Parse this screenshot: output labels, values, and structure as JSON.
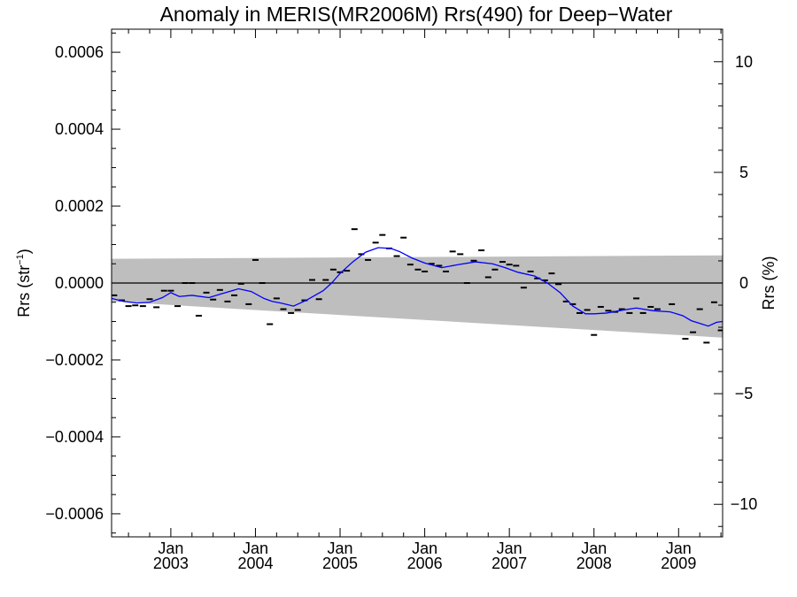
{
  "chart_data": {
    "type": "scatter",
    "title": "Anomaly in MERIS(MR2006M) Rrs(490) for Deep−Water",
    "ylabel_main": "Rrs (str",
    "ylabel_sup": "−1",
    "ylabel_close": ")",
    "y2label": "Rrs (%)",
    "xlim": [
      2002.3,
      2009.52
    ],
    "ylim": [
      -0.00066,
      0.00066
    ],
    "y2lim": [
      -11.47,
      11.47
    ],
    "grid": false,
    "x_ticks": [
      {
        "value": 2003.0,
        "line1": "Jan",
        "line2": "2003"
      },
      {
        "value": 2004.0,
        "line1": "Jan",
        "line2": "2004"
      },
      {
        "value": 2005.0,
        "line1": "Jan",
        "line2": "2005"
      },
      {
        "value": 2006.0,
        "line1": "Jan",
        "line2": "2006"
      },
      {
        "value": 2007.0,
        "line1": "Jan",
        "line2": "2007"
      },
      {
        "value": 2008.0,
        "line1": "Jan",
        "line2": "2008"
      },
      {
        "value": 2009.0,
        "line1": "Jan",
        "line2": "2009"
      }
    ],
    "y_ticks": [
      {
        "value": 0.0006,
        "label": "0.0006"
      },
      {
        "value": 0.0004,
        "label": "0.0004"
      },
      {
        "value": 0.0002,
        "label": "0.0002"
      },
      {
        "value": 0.0,
        "label": "0.0000"
      },
      {
        "value": -0.0002,
        "label": "−0.0002"
      },
      {
        "value": -0.0004,
        "label": "−0.0004"
      },
      {
        "value": -0.0006,
        "label": "−0.0006"
      }
    ],
    "y2_ticks": [
      {
        "value": 10,
        "label": "10"
      },
      {
        "value": 5,
        "label": "5"
      },
      {
        "value": 0,
        "label": "0"
      },
      {
        "value": -5,
        "label": "−5"
      },
      {
        "value": -10,
        "label": "−10"
      }
    ],
    "band": {
      "x": [
        2002.3,
        2009.52
      ],
      "upper": [
        6.3e-05,
        7.2e-05
      ],
      "lower": [
        -4.8e-05,
        -0.000142
      ],
      "color": "#bebebe"
    },
    "zero_line": 0,
    "monthly_anomalies": {
      "marker": "dash",
      "color": "#000000",
      "x": [
        2002.33,
        2002.42,
        2002.5,
        2002.58,
        2002.67,
        2002.75,
        2002.83,
        2002.92,
        2003.0,
        2003.08,
        2003.17,
        2003.25,
        2003.33,
        2003.42,
        2003.5,
        2003.58,
        2003.67,
        2003.75,
        2003.83,
        2003.92,
        2004.0,
        2004.08,
        2004.17,
        2004.25,
        2004.33,
        2004.42,
        2004.5,
        2004.58,
        2004.67,
        2004.75,
        2004.83,
        2004.92,
        2005.0,
        2005.08,
        2005.17,
        2005.25,
        2005.33,
        2005.42,
        2005.5,
        2005.58,
        2005.67,
        2005.75,
        2005.83,
        2005.92,
        2006.0,
        2006.08,
        2006.17,
        2006.25,
        2006.33,
        2006.42,
        2006.5,
        2006.58,
        2006.67,
        2006.75,
        2006.83,
        2006.92,
        2007.0,
        2007.08,
        2007.17,
        2007.25,
        2007.33,
        2007.42,
        2007.5,
        2007.58,
        2007.67,
        2007.75,
        2007.83,
        2007.92,
        2008.0,
        2008.08,
        2008.17,
        2008.25,
        2008.33,
        2008.42,
        2008.5,
        2008.58,
        2008.67,
        2008.75,
        2008.92,
        2009.08,
        2009.17,
        2009.25,
        2009.33,
        2009.42,
        2009.5
      ],
      "values": [
        -3.2e-05,
        -4.5e-05,
        -6e-05,
        -5.8e-05,
        -6e-05,
        -4.2e-05,
        -6.3e-05,
        -2e-05,
        -2e-05,
        -6e-05,
        0.0,
        0.0,
        -8.5e-05,
        -2.5e-05,
        -4.3e-05,
        -1.8e-05,
        -4.8e-05,
        -3.2e-05,
        -2e-06,
        -5.5e-05,
        6e-05,
        0.0,
        -0.000107,
        -4e-05,
        -6.8e-05,
        -7.8e-05,
        -7e-05,
        -4.5e-05,
        8e-06,
        -4.2e-05,
        8e-06,
        3.5e-05,
        2.8e-05,
        3.2e-05,
        0.00014,
        7.5e-05,
        6e-05,
        0.000105,
        0.000125,
        9e-05,
        7e-05,
        0.000118,
        4.8e-05,
        3.5e-05,
        3e-05,
        5e-05,
        4.5e-05,
        3e-05,
        8.2e-05,
        7.5e-05,
        0.0,
        5.8e-05,
        8.5e-05,
        1.5e-05,
        3.5e-05,
        5.5e-05,
        4.8e-05,
        4.5e-05,
        -1.2e-05,
        3e-05,
        1.2e-05,
        7e-06,
        2.5e-05,
        -3e-06,
        -4.8e-05,
        -5.5e-05,
        -7.8e-05,
        -7e-05,
        -0.000135,
        -6.2e-05,
        -7.2e-05,
        -7.5e-05,
        -6.8e-05,
        -7.8e-05,
        -4e-05,
        -7.8e-05,
        -6.2e-05,
        -6.8e-05,
        -5.5e-05,
        -0.000145,
        -0.000128,
        -6.8e-05,
        -0.000155,
        -5e-05,
        -0.000123
      ]
    },
    "smoothed_series": {
      "color": "#0000ff",
      "x": [
        2002.3,
        2002.45,
        2002.6,
        2002.75,
        2002.9,
        2003.0,
        2003.1,
        2003.25,
        2003.45,
        2003.6,
        2003.8,
        2003.95,
        2004.1,
        2004.2,
        2004.3,
        2004.45,
        2004.6,
        2004.8,
        2004.9,
        2005.0,
        2005.15,
        2005.3,
        2005.45,
        2005.6,
        2005.7,
        2005.85,
        2006.0,
        2006.2,
        2006.4,
        2006.6,
        2006.8,
        2006.95,
        2007.1,
        2007.3,
        2007.45,
        2007.6,
        2007.75,
        2007.9,
        2008.0,
        2008.15,
        2008.35,
        2008.5,
        2008.7,
        2008.9,
        2009.05,
        2009.15,
        2009.25,
        2009.35,
        2009.45,
        2009.52
      ],
      "values": [
        -4e-05,
        -4.8e-05,
        -5.2e-05,
        -5e-05,
        -3.8e-05,
        -2.5e-05,
        -3.5e-05,
        -3.2e-05,
        -3.8e-05,
        -2.8e-05,
        -1.5e-05,
        -2.2e-05,
        -4e-05,
        -4.8e-05,
        -5.2e-05,
        -6e-05,
        -4.5e-05,
        -2e-05,
        0.0,
        2.5e-05,
        5.5e-05,
        8e-05,
        9.2e-05,
        9e-05,
        8.2e-05,
        6.5e-05,
        5.2e-05,
        4e-05,
        4.8e-05,
        5.5e-05,
        5e-05,
        4e-05,
        2.8e-05,
        1.8e-05,
        0.0,
        -2.5e-05,
        -6e-05,
        -8e-05,
        -8e-05,
        -7.8e-05,
        -7e-05,
        -6.5e-05,
        -7.2e-05,
        -7.5e-05,
        -8.5e-05,
        -9.8e-05,
        -0.000105,
        -0.000112,
        -0.000102,
        -0.0001
      ]
    }
  }
}
